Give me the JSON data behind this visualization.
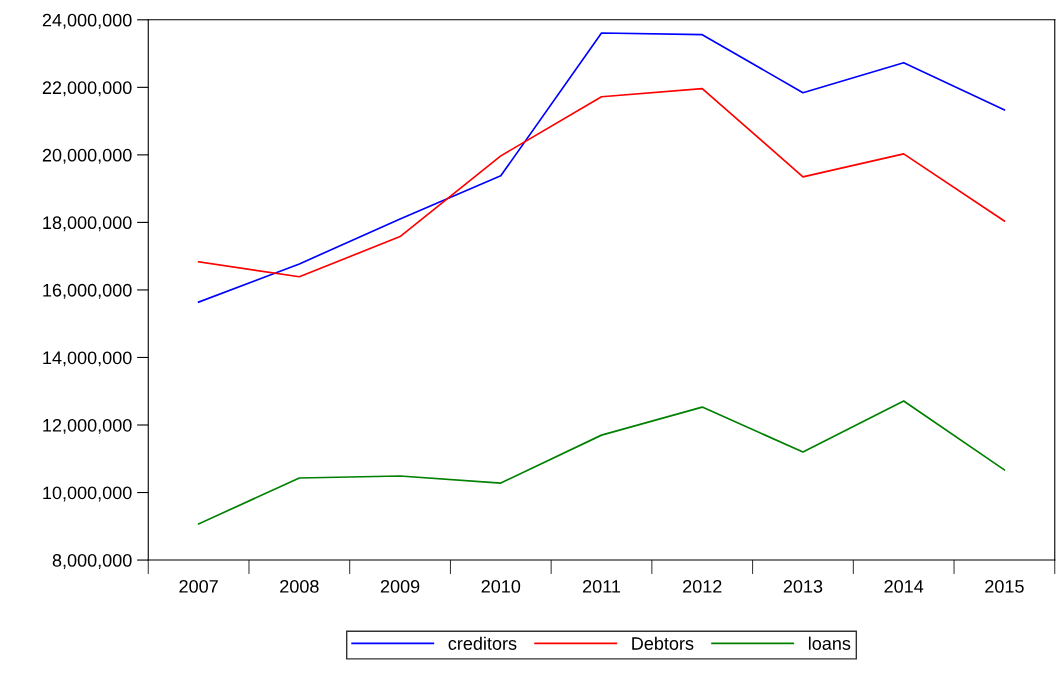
{
  "chart_data": {
    "type": "line",
    "categories": [
      "2007",
      "2008",
      "2009",
      "2010",
      "2011",
      "2012",
      "2013",
      "2014",
      "2015"
    ],
    "series": [
      {
        "name": "creditors",
        "color": "#0000ff",
        "values": [
          15640000,
          16770000,
          18100000,
          19380000,
          23610000,
          23560000,
          21840000,
          22730000,
          21330000
        ]
      },
      {
        "name": "Debtors",
        "color": "#ff0000",
        "values": [
          16830000,
          16390000,
          17580000,
          19970000,
          21720000,
          21960000,
          19350000,
          20030000,
          18040000
        ]
      },
      {
        "name": "loans",
        "color": "#008000",
        "values": [
          9070000,
          10430000,
          10490000,
          10280000,
          11700000,
          12530000,
          11200000,
          12710000,
          10670000
        ]
      }
    ],
    "ylim": [
      8000000,
      24000000
    ],
    "yticks": [
      {
        "value": 8000000,
        "label": "8,000,000"
      },
      {
        "value": 10000000,
        "label": "10,000,000"
      },
      {
        "value": 12000000,
        "label": "12,000,000"
      },
      {
        "value": 14000000,
        "label": "14,000,000"
      },
      {
        "value": 16000000,
        "label": "16,000,000"
      },
      {
        "value": 18000000,
        "label": "18,000,000"
      },
      {
        "value": 20000000,
        "label": "20,000,000"
      },
      {
        "value": 22000000,
        "label": "22,000,000"
      },
      {
        "value": 24000000,
        "label": "24,000,000"
      }
    ],
    "legend": "bottom",
    "grid": false,
    "marker": "none",
    "line_style": "solid"
  }
}
